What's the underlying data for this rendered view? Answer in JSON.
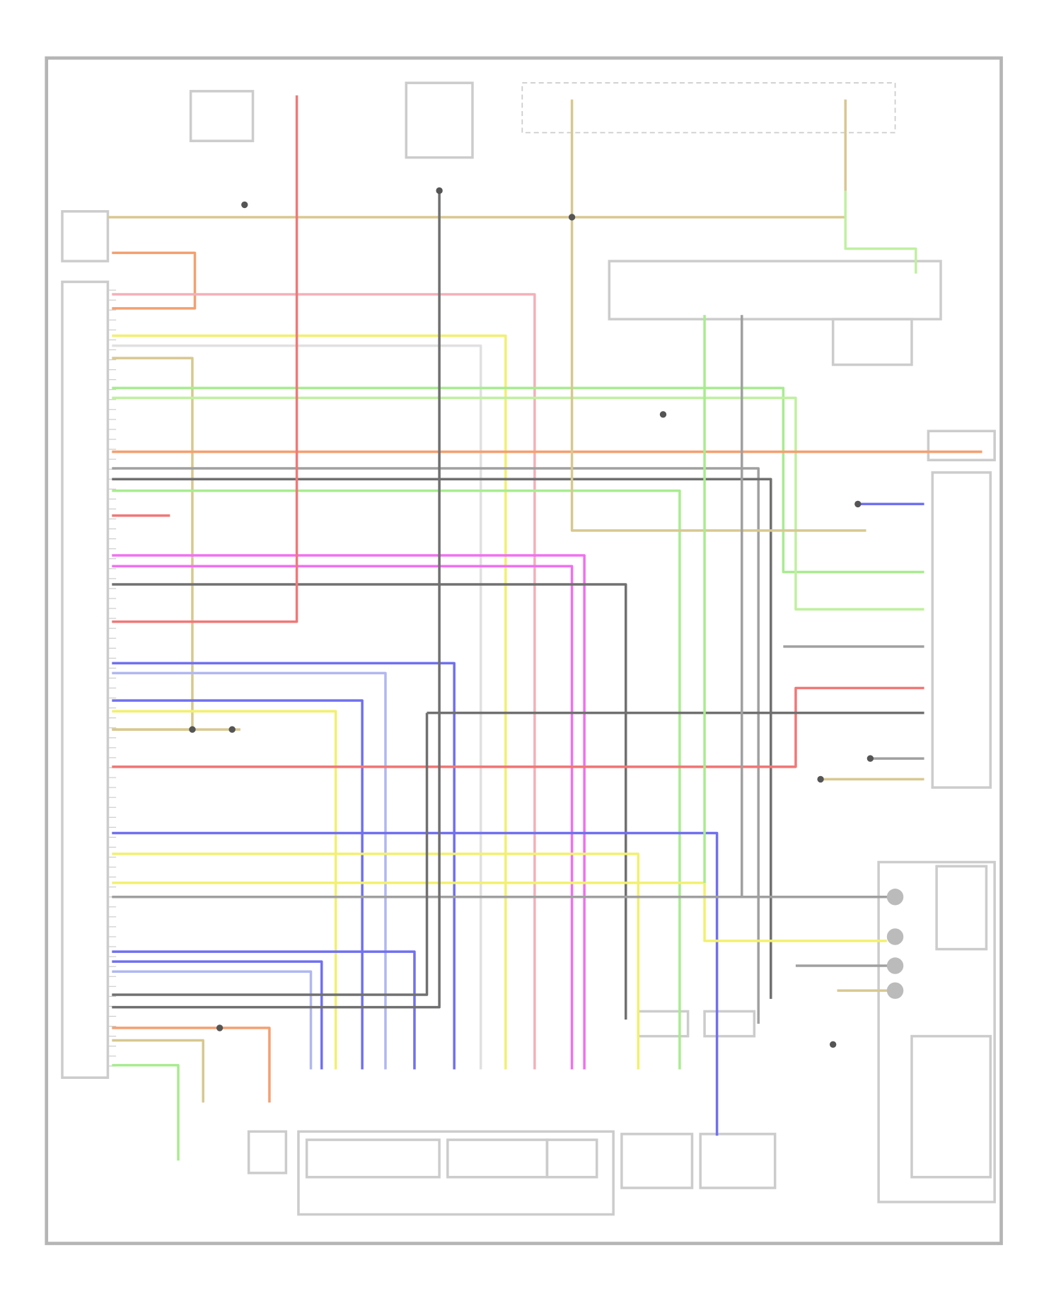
{
  "diagram": {
    "type": "wiring-diagram",
    "text_legible": false,
    "background": "#ffffff",
    "frame_color": "#b0b0b0",
    "component_color": "#c8c8c8",
    "wire_colors": {
      "orange": "#f4a070",
      "yellow": "#f2f070",
      "white": "#e0e0e0",
      "pink": "#f4b0b8",
      "tan": "#d8c890",
      "green": "#a8ec90",
      "red": "#f07878",
      "grey": "#a0a0a0",
      "dark_grey": "#707070",
      "magenta": "#f070f0",
      "blue": "#7070f0",
      "light_blue": "#b0b8f0",
      "light_green": "#c0f0a0"
    }
  }
}
